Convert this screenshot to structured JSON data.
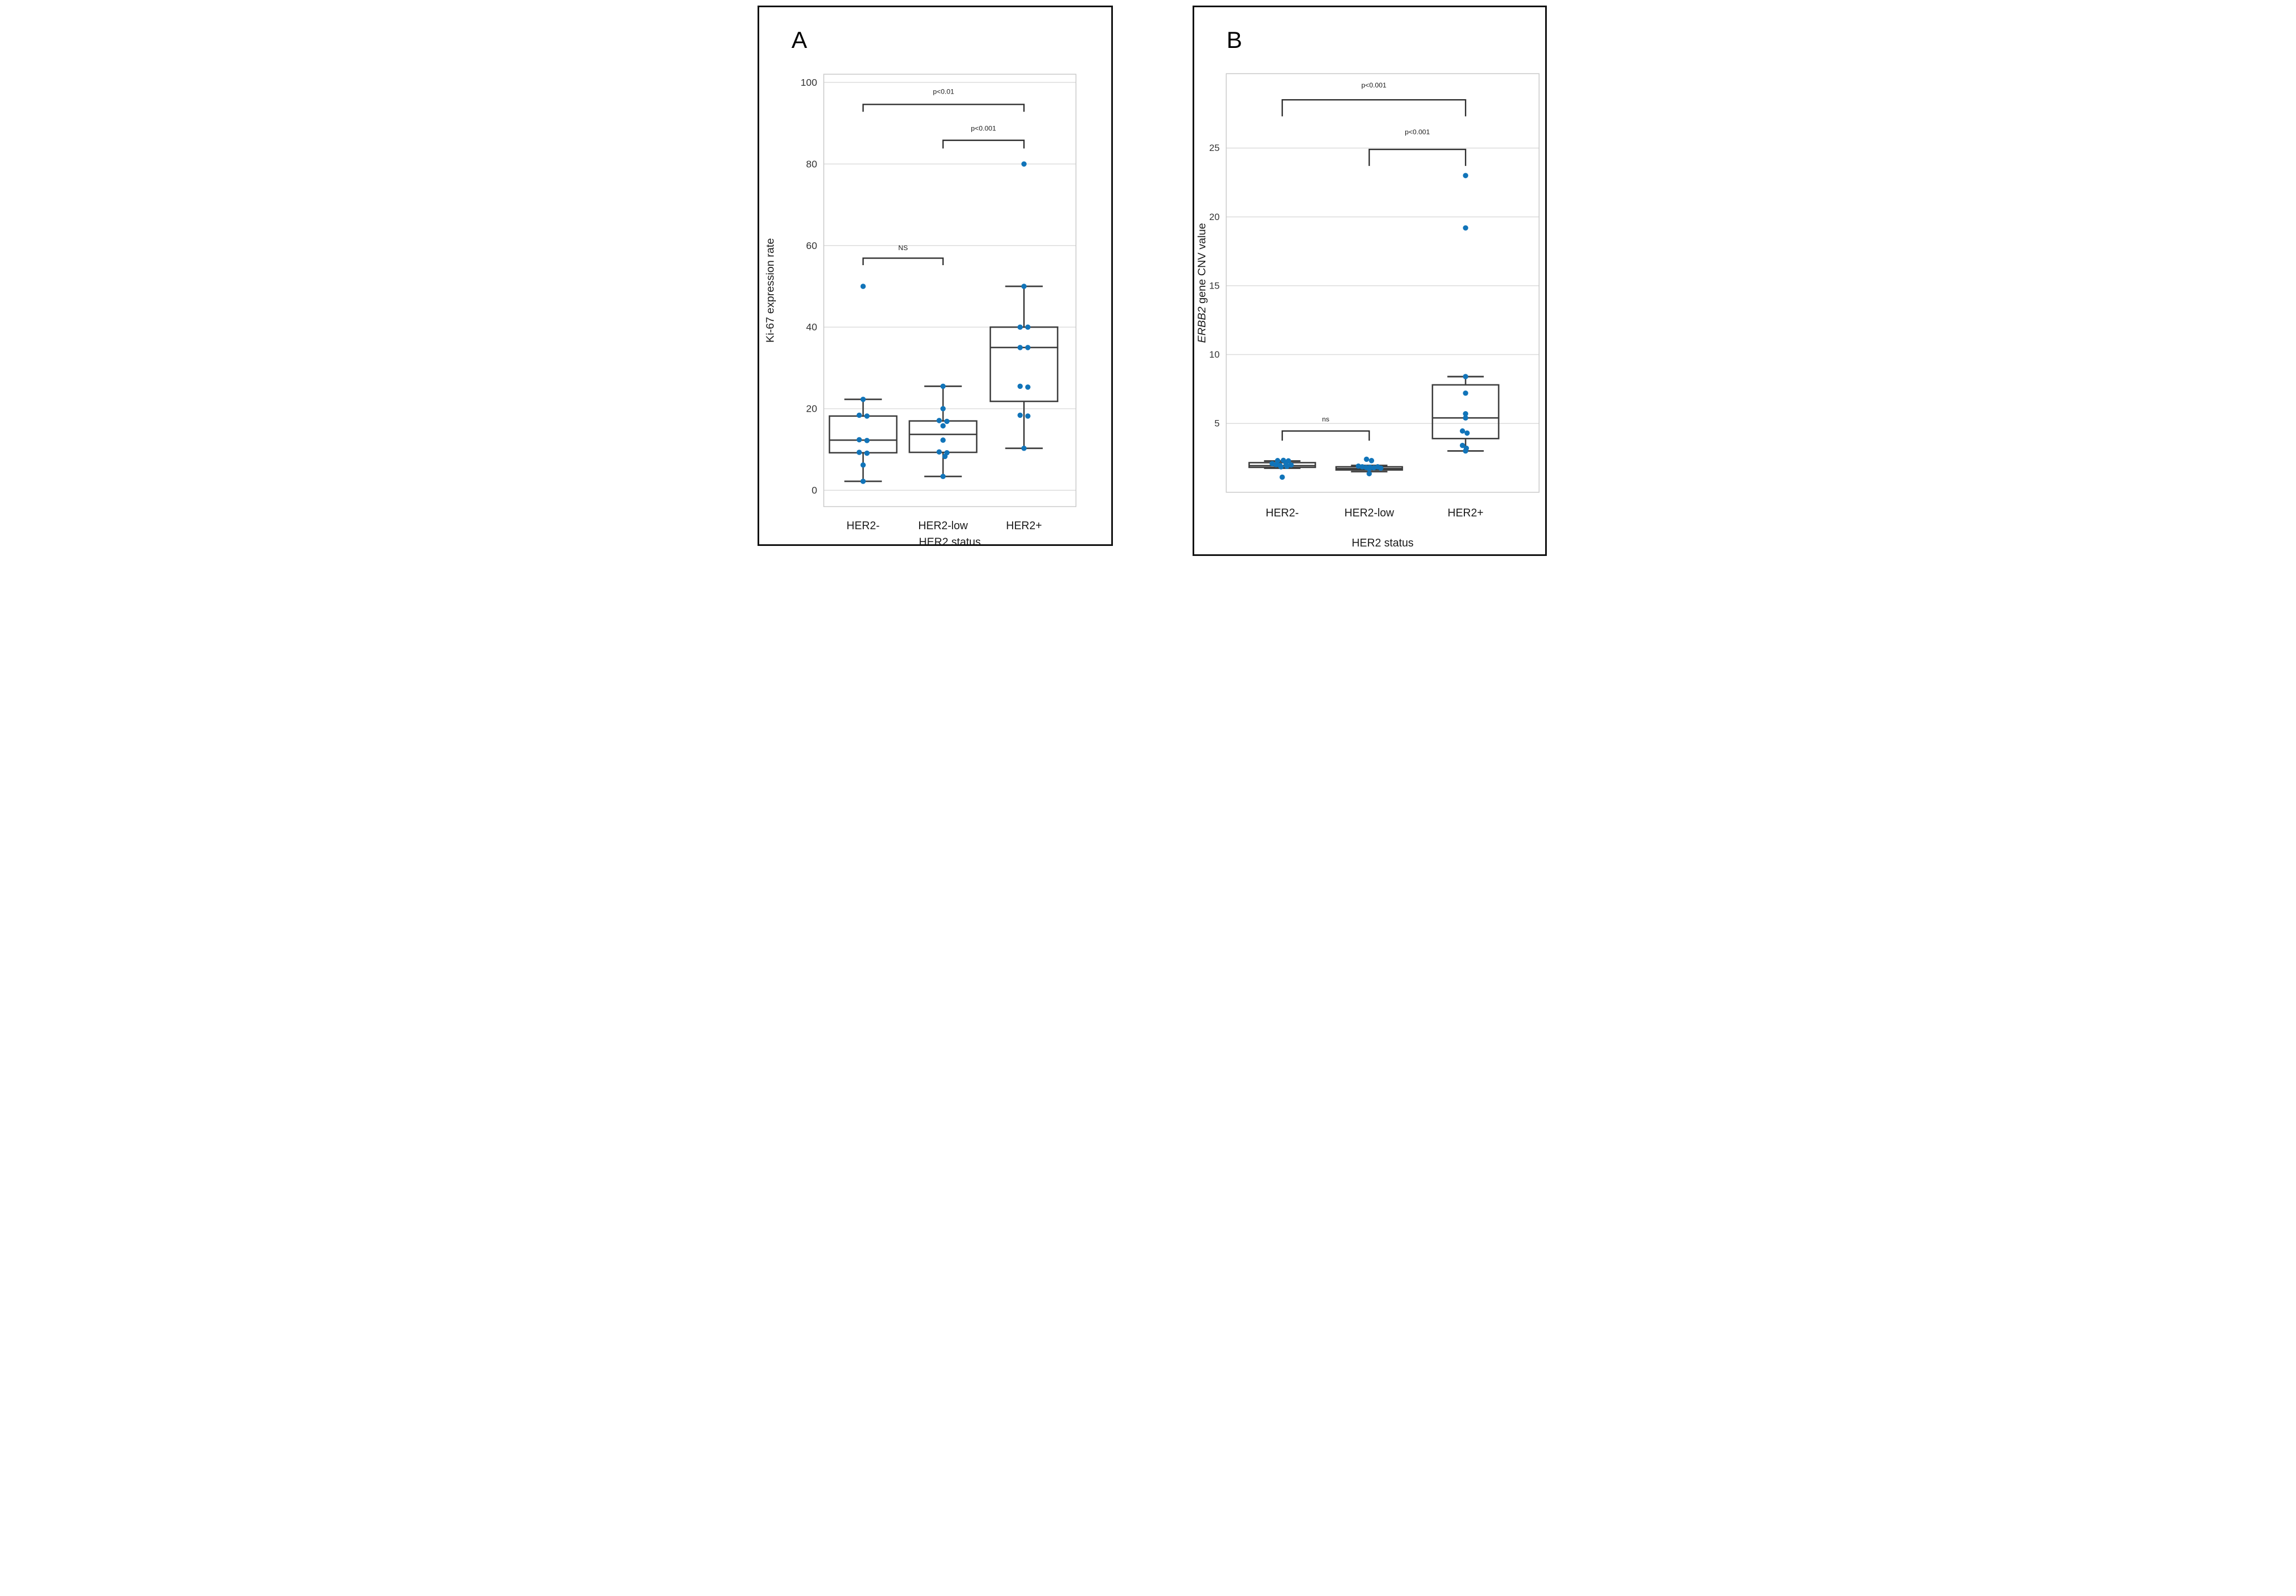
{
  "chart_data": [
    {
      "type": "box",
      "letter": "A",
      "xlabel": "HER2 status",
      "ylabel_parts": [
        {
          "text": "Ki-67 expression rate",
          "italic": false
        }
      ],
      "ylim": [
        -4,
        102
      ],
      "yticks": [
        0,
        20,
        40,
        60,
        80,
        100
      ],
      "categories": [
        "HER2-",
        "HER2-low",
        "HER2+"
      ],
      "groups": [
        {
          "label": "HER2-",
          "box": {
            "whisker_low": 2.2,
            "q1": 9.2,
            "median": 12.3,
            "q3": 18.2,
            "whisker_high": 22.3
          },
          "points": [
            {
              "v": 50,
              "j": 0
            },
            {
              "v": 22.3,
              "j": 0
            },
            {
              "v": 18.4,
              "j": -1
            },
            {
              "v": 18.2,
              "j": 1
            },
            {
              "v": 12.4,
              "j": -1
            },
            {
              "v": 12.2,
              "j": 1
            },
            {
              "v": 9.3,
              "j": -1
            },
            {
              "v": 9.1,
              "j": 1
            },
            {
              "v": 6.2,
              "j": 0
            },
            {
              "v": 2.2,
              "j": 0
            }
          ]
        },
        {
          "label": "HER2-low",
          "box": {
            "whisker_low": 3.4,
            "q1": 9.3,
            "median": 13.7,
            "q3": 17.0,
            "whisker_high": 25.5
          },
          "points": [
            {
              "v": 25.5,
              "j": 0
            },
            {
              "v": 20,
              "j": 0
            },
            {
              "v": 17.1,
              "j": -1
            },
            {
              "v": 16.9,
              "j": 1
            },
            {
              "v": 15.8,
              "j": 0
            },
            {
              "v": 12.3,
              "j": 0
            },
            {
              "v": 9.4,
              "j": -1
            },
            {
              "v": 9.2,
              "j": 1
            },
            {
              "v": 8.3,
              "j": 0.5
            },
            {
              "v": 3.4,
              "j": 0
            }
          ]
        },
        {
          "label": "HER2+",
          "box": {
            "whisker_low": 10.3,
            "q1": 21.8,
            "median": 35,
            "q3": 40,
            "whisker_high": 50
          },
          "points": [
            {
              "v": 80,
              "j": 0
            },
            {
              "v": 50,
              "j": 0
            },
            {
              "v": 40,
              "j": -1
            },
            {
              "v": 40,
              "j": 1
            },
            {
              "v": 35,
              "j": -1
            },
            {
              "v": 35,
              "j": 1
            },
            {
              "v": 25.5,
              "j": -1
            },
            {
              "v": 25.3,
              "j": 1
            },
            {
              "v": 18.4,
              "j": -1
            },
            {
              "v": 18.2,
              "j": 1
            },
            {
              "v": 10.3,
              "j": 0
            }
          ]
        }
      ],
      "brackets": [
        {
          "from": 0,
          "to": 2,
          "y": 94.6,
          "arm": 1.8,
          "label": "p<0.01",
          "label_y": 97.2
        },
        {
          "from": 1,
          "to": 2,
          "y": 85.8,
          "arm": 2.0,
          "label": "p<0.001",
          "label_y": 88.2
        },
        {
          "from": 0,
          "to": 1,
          "y": 56.9,
          "arm": 1.7,
          "label": "NS",
          "label_y": 58.9
        }
      ]
    },
    {
      "type": "box",
      "letter": "B",
      "xlabel": "HER2 status",
      "ylabel_parts": [
        {
          "text": "ERBB2",
          "italic": true
        },
        {
          "text": " gene CNV value",
          "italic": false
        }
      ],
      "ylim": [
        0,
        30.4
      ],
      "yticks": [
        5,
        10,
        15,
        20,
        25
      ],
      "categories": [
        "HER2-",
        "HER2-low",
        "HER2+"
      ],
      "groups": [
        {
          "label": "HER2-",
          "box": {
            "whisker_low": 1.75,
            "q1": 1.81,
            "median": 1.93,
            "q3": 2.15,
            "whisker_high": 2.27
          },
          "points": [
            {
              "v": 2.3,
              "j": -1.2
            },
            {
              "v": 2.32,
              "j": 0.3
            },
            {
              "v": 2.28,
              "j": 1.6
            },
            {
              "v": 2.08,
              "j": -2.6
            },
            {
              "v": 2.0,
              "j": -1.6
            },
            {
              "v": 1.95,
              "j": -0.6
            },
            {
              "v": 2.05,
              "j": 1.0
            },
            {
              "v": 1.98,
              "j": 2.3
            },
            {
              "v": 1.85,
              "j": -0.3
            },
            {
              "v": 1.88,
              "j": 1.2
            },
            {
              "v": 1.1,
              "j": 0
            }
          ]
        },
        {
          "label": "HER2-low",
          "box": {
            "whisker_low": 1.5,
            "q1": 1.62,
            "median": 1.72,
            "q3": 1.85,
            "whisker_high": 1.95
          },
          "points": [
            {
              "v": 2.4,
              "j": -0.7
            },
            {
              "v": 2.3,
              "j": 0.6
            },
            {
              "v": 1.9,
              "j": -2.8
            },
            {
              "v": 1.85,
              "j": -1.8
            },
            {
              "v": 1.8,
              "j": -0.8
            },
            {
              "v": 1.82,
              "j": 0.2
            },
            {
              "v": 1.78,
              "j": 1.2
            },
            {
              "v": 1.85,
              "j": 2.2
            },
            {
              "v": 1.75,
              "j": 3.0
            },
            {
              "v": 1.7,
              "j": 0.0
            },
            {
              "v": 1.35,
              "j": 0
            }
          ]
        },
        {
          "label": "HER2+",
          "box": {
            "whisker_low": 3.0,
            "q1": 3.9,
            "median": 5.4,
            "q3": 7.8,
            "whisker_high": 8.4
          },
          "points": [
            {
              "v": 23,
              "j": 0
            },
            {
              "v": 19.2,
              "j": 0
            },
            {
              "v": 8.4,
              "j": 0
            },
            {
              "v": 7.2,
              "j": 0
            },
            {
              "v": 5.7,
              "j": 0
            },
            {
              "v": 5.4,
              "j": 0
            },
            {
              "v": 4.45,
              "j": -0.8
            },
            {
              "v": 4.3,
              "j": 0.4
            },
            {
              "v": 3.4,
              "j": -0.8
            },
            {
              "v": 3.2,
              "j": 0.2
            },
            {
              "v": 3.0,
              "j": 0
            }
          ]
        }
      ],
      "brackets": [
        {
          "from": 0,
          "to": 2,
          "y": 28.5,
          "arm": 1.2,
          "label": "p<0.001",
          "label_y": 29.4
        },
        {
          "from": 1,
          "to": 2,
          "y": 24.9,
          "arm": 1.2,
          "label": "p<0.001",
          "label_y": 26.0
        },
        {
          "from": 0,
          "to": 1,
          "y": 4.45,
          "arm": 0.7,
          "label": "ns",
          "label_y": 5.15
        }
      ]
    }
  ],
  "colors": {
    "point": "#1174b9",
    "box_stroke": "#3d3d3d",
    "grid": "#dcdcdc",
    "plot_border": "#c9c9c9",
    "bracket": "#2e2e2e",
    "tick_text": "#333333",
    "label_text": "#1a1a1a"
  }
}
